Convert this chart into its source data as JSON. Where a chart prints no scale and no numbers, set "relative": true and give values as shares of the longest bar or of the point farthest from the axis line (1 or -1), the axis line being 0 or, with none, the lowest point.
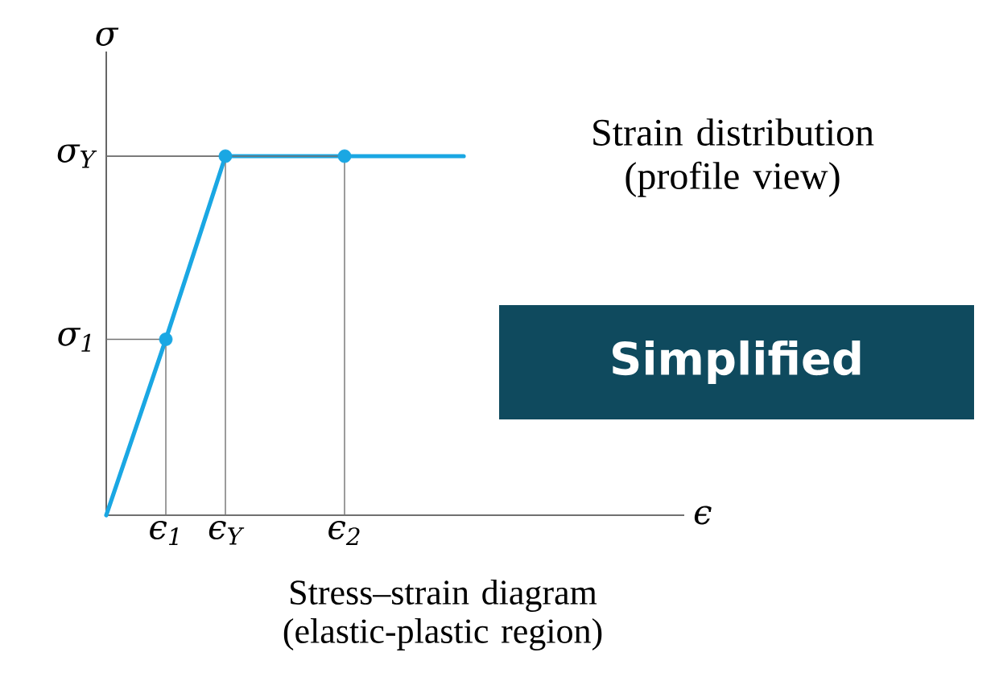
{
  "chart_data": {
    "type": "line",
    "relative": true,
    "ylabel": "σ",
    "categories": [
      null,
      "ϵ$_{1}$",
      "ϵ$_{Y}$",
      null,
      "ϵ$_{2}$",
      null,
      null
    ],
    "series": [
      {
        "color": "#1aa7e3",
        "values": [
          0,
          0.49,
          1,
          1,
          1,
          1,
          1
        ]
      },
      {
        "type": "scatter",
        "color": "#1aa7e3",
        "marker": "circle",
        "values": [
          null,
          0.49,
          1,
          null,
          1,
          null,
          null
        ]
      }
    ],
    "annotations": [
      "σ$_{Y}$",
      "σ$_{1}$",
      "ϵ",
      "Strain distribution (profile view)",
      "Simplified",
      "Stress–strain diagram (elastic-plastic region)"
    ]
  }
}
